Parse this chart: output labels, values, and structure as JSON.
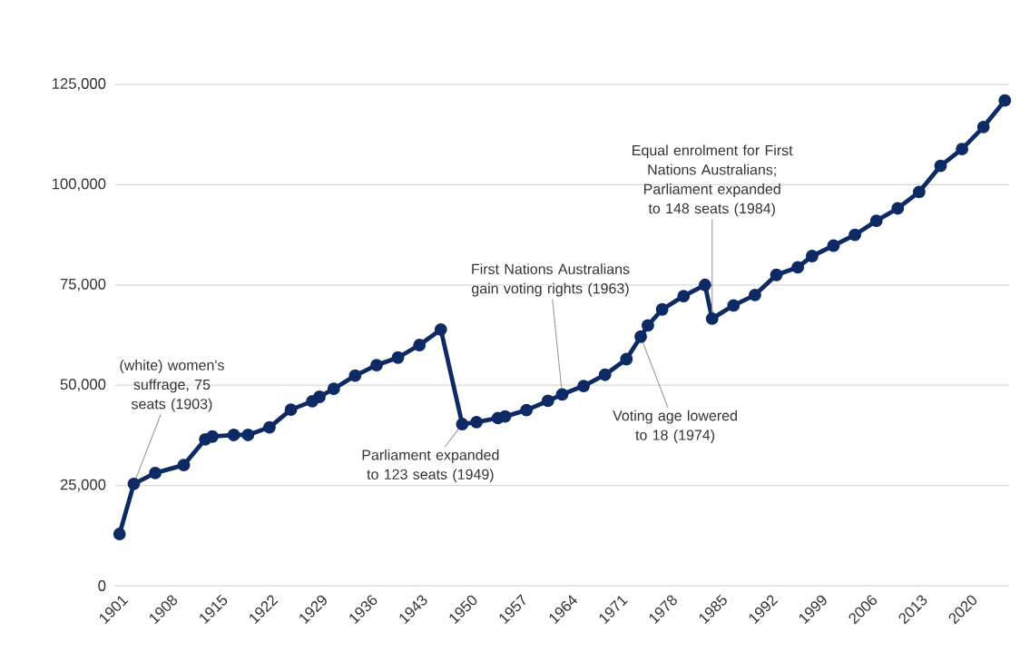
{
  "chart_data": {
    "type": "line",
    "x": [
      1901,
      1903,
      1906,
      1910,
      1913,
      1914,
      1917,
      1919,
      1922,
      1925,
      1928,
      1929,
      1931,
      1934,
      1937,
      1940,
      1943,
      1946,
      1949,
      1951,
      1954,
      1955,
      1958,
      1961,
      1963,
      1966,
      1969,
      1972,
      1974,
      1975,
      1977,
      1980,
      1983,
      1984,
      1987,
      1990,
      1993,
      1996,
      1998,
      2001,
      2004,
      2007,
      2010,
      2013,
      2016,
      2019,
      2022,
      2025
    ],
    "series": [
      {
        "color": "#0d2a64",
        "values": [
          12900,
          25400,
          28100,
          30100,
          36500,
          37200,
          37600,
          37600,
          39500,
          43900,
          46000,
          47100,
          49100,
          52400,
          55000,
          56900,
          60000,
          63900,
          40300,
          40800,
          41800,
          42200,
          43800,
          46100,
          47700,
          49800,
          52600,
          56500,
          62100,
          64900,
          68900,
          72200,
          75000,
          66600,
          69900,
          72500,
          77500,
          79400,
          82200,
          84800,
          87500,
          91000,
          94100,
          98200,
          104700,
          108900,
          114400,
          121000
        ]
      }
    ],
    "xlim": [
      1900.4,
      2025.6
    ],
    "xticks": [
      1901,
      1908,
      1915,
      1922,
      1929,
      1936,
      1943,
      1950,
      1957,
      1964,
      1971,
      1978,
      1985,
      1992,
      1999,
      2006,
      2013,
      2020
    ],
    "ylim": [
      0,
      125000
    ],
    "yticks": [
      {
        "value": 0,
        "label": "0"
      },
      {
        "value": 25000,
        "label": "25,000"
      },
      {
        "value": 50000,
        "label": "50,000"
      },
      {
        "value": 75000,
        "label": "75,000"
      },
      {
        "value": 100000,
        "label": "100,000"
      },
      {
        "value": 125000,
        "label": "125,000"
      }
    ],
    "grid": "y",
    "marker": "circle",
    "line_style": "solid",
    "annotations": [
      {
        "text": "(white) women's suffrage, 75 seats (1903)",
        "x": 1903,
        "y": 25400
      },
      {
        "text": "Parliament expanded to 123 seats (1949)",
        "x": 1949,
        "y": 40300
      },
      {
        "text": "First Nations Australians gain voting rights (1963)",
        "x": 1963,
        "y": 47700
      },
      {
        "text": "Voting age lowered to 18 (1974)",
        "x": 1974,
        "y": 62100
      },
      {
        "text": "Equal enrolment for First Nations Australians; Parliament expanded to 148 seats (1984)",
        "x": 1984,
        "y": 66600
      }
    ]
  }
}
